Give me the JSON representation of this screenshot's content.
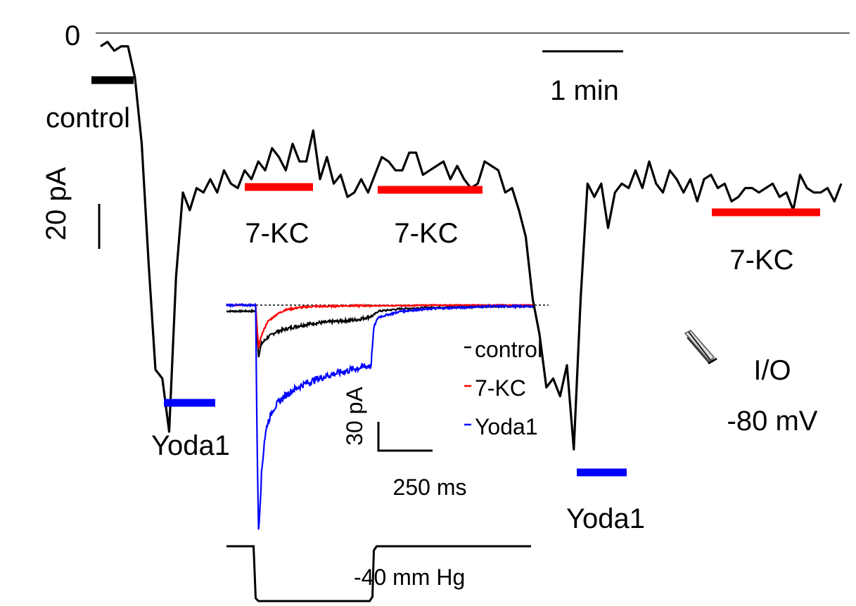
{
  "labels": {
    "zero": "0",
    "control": "control",
    "time_scale": "1 min",
    "amp_scale": "20 pA",
    "seven_kc_1": "7-KC",
    "seven_kc_2": "7-KC",
    "seven_kc_3": "7-KC",
    "yoda_1": "Yoda1",
    "yoda_2": "Yoda1",
    "config_1": "I/O",
    "config_2": "-80 mV"
  },
  "colors": {
    "trace": "#000000",
    "control": "#000000",
    "seven_kc": "#ff0000",
    "yoda1": "#0000ff",
    "zero_line": "#000000"
  },
  "chart_data": [
    {
      "type": "line",
      "title": "",
      "xlabel": "",
      "ylabel": "",
      "x_unit": "s",
      "y_unit": "pA",
      "zero_label": "0",
      "scale_bars": {
        "time": "1 min",
        "current": "20 pA"
      },
      "series": [
        {
          "name": "holding current",
          "x": [
            0,
            3,
            6,
            9,
            12,
            15,
            18,
            21,
            24,
            27,
            30,
            33,
            36,
            39,
            42,
            45,
            48,
            51,
            54,
            57,
            60,
            63,
            66,
            69,
            72,
            75,
            78,
            81,
            84,
            87,
            90,
            93,
            96,
            99,
            102,
            105,
            108,
            111,
            114,
            117,
            120,
            123,
            126,
            129,
            132,
            135,
            138,
            141,
            144,
            147,
            150,
            153,
            156,
            159,
            162,
            165,
            168,
            171,
            174,
            177,
            180,
            183,
            186,
            189,
            192,
            195,
            198,
            201,
            204,
            207,
            210,
            213,
            216,
            219,
            222,
            225,
            228,
            231,
            234,
            237,
            240,
            243,
            246,
            249,
            252,
            255,
            258,
            261,
            264,
            267,
            270,
            273,
            276,
            279,
            282,
            285,
            288,
            291,
            294,
            297,
            300,
            303,
            306,
            309,
            312,
            315,
            318,
            321,
            324
          ],
          "values": [
            -3,
            -2,
            -4,
            -3,
            -3,
            -10,
            -25,
            -52,
            -76,
            -78,
            -90,
            -55,
            -36,
            -40,
            -35,
            -36,
            -33,
            -36,
            -31,
            -34,
            -35,
            -31,
            -33,
            -29,
            -31,
            -26,
            -28,
            -31,
            -25,
            -29,
            -29,
            -22,
            -33,
            -28,
            -34,
            -32,
            -37,
            -36,
            -33,
            -36,
            -32,
            -28,
            -29,
            -31,
            -31,
            -27,
            -27,
            -32,
            -31,
            -30,
            -29,
            -33,
            -30,
            -33,
            -35,
            -34,
            -29,
            -30,
            -31,
            -36,
            -35,
            -40,
            -46,
            -60,
            -68,
            -80,
            -78,
            -82,
            -75,
            -94,
            -60,
            -34,
            -37,
            -34,
            -44,
            -36,
            -34,
            -35,
            -31,
            -35,
            -29,
            -34,
            -36,
            -31,
            -33,
            -36,
            -33,
            -38,
            -33,
            -32,
            -35,
            -34,
            -38,
            -37,
            -35,
            -35,
            -36,
            -35,
            -34,
            -37,
            -36,
            -40,
            -32,
            -35,
            -36,
            -36,
            -35,
            -38,
            -34
          ]
        }
      ],
      "annotations": [
        {
          "label": "control",
          "color": "#000000",
          "x_start": 0,
          "x_end": 8
        },
        {
          "label": "Yoda1",
          "color": "#0000ff",
          "x_start": 26,
          "x_end": 45
        },
        {
          "label": "7-KC",
          "color": "#ff0000",
          "x_start": 57,
          "x_end": 83
        },
        {
          "label": "7-KC",
          "color": "#ff0000",
          "x_start": 117,
          "x_end": 157
        },
        {
          "label": "Yoda1",
          "color": "#0000ff",
          "x_start": 190,
          "x_end": 209
        },
        {
          "label": "7-KC",
          "color": "#ff0000",
          "x_start": 277,
          "x_end": 318
        }
      ]
    },
    {
      "type": "line",
      "title": "",
      "xlabel": "",
      "ylabel": "",
      "x_unit": "ms",
      "y_unit": "pA",
      "legend_position": "inset right",
      "scale_bars": {
        "current": "30 pA",
        "time": "250 ms"
      },
      "stimulus": {
        "label": "-40 mm Hg",
        "start_ms": 100,
        "end_ms": 500
      },
      "series": [
        {
          "name": "control",
          "color": "#000000",
          "x": [
            0,
            100,
            105,
            110,
            120,
            140,
            170,
            200,
            250,
            300,
            350,
            400,
            450,
            500,
            520,
            600,
            700,
            800,
            900,
            1000,
            1050
          ],
          "values": [
            -5,
            -5,
            -25,
            -42,
            -32,
            -27,
            -22,
            -20,
            -17,
            -15,
            -14,
            -13,
            -12,
            -9,
            -5,
            -3,
            -2,
            -1.5,
            -1,
            -1,
            -1
          ]
        },
        {
          "name": "7-KC",
          "color": "#ff0000",
          "x": [
            0,
            100,
            105,
            110,
            120,
            140,
            170,
            200,
            250,
            300,
            350,
            400,
            450,
            500,
            520,
            600,
            700,
            800,
            900,
            1000,
            1050
          ],
          "values": [
            0,
            0,
            -20,
            -35,
            -25,
            -14,
            -8,
            -4,
            -2,
            -1,
            -1,
            -0.5,
            -0.5,
            -0.5,
            -0.5,
            -0.5,
            0,
            0,
            0,
            0,
            0
          ]
        },
        {
          "name": "Yoda1",
          "color": "#0000ff",
          "x": [
            0,
            100,
            105,
            110,
            115,
            120,
            130,
            140,
            160,
            180,
            200,
            230,
            260,
            300,
            350,
            400,
            450,
            495,
            505,
            520,
            600,
            700,
            800,
            900,
            1000,
            1050
          ],
          "values": [
            0,
            0,
            -120,
            -185,
            -165,
            -140,
            -112,
            -98,
            -86,
            -80,
            -75,
            -70,
            -66,
            -62,
            -58,
            -55,
            -52,
            -50,
            -18,
            -10,
            -5,
            -3,
            -2,
            -1,
            -1,
            -1
          ]
        }
      ]
    }
  ]
}
